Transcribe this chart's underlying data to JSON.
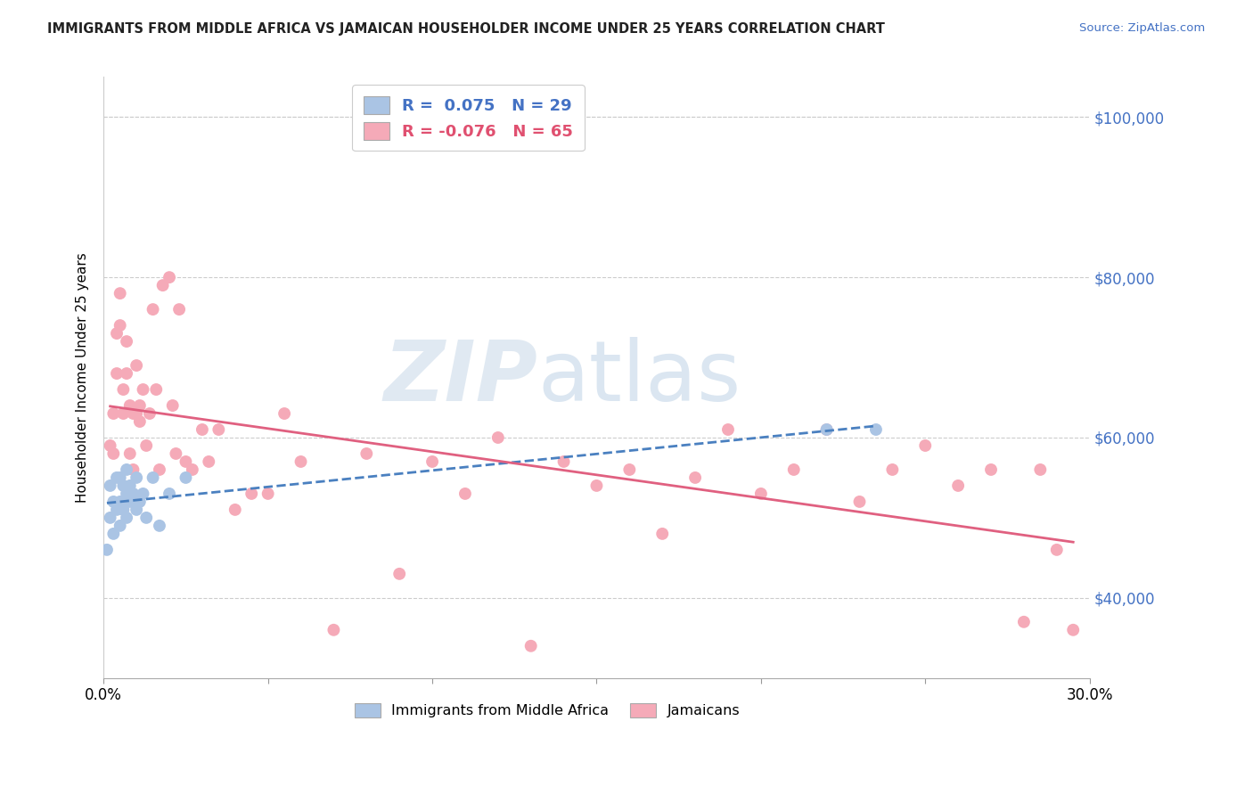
{
  "title": "IMMIGRANTS FROM MIDDLE AFRICA VS JAMAICAN HOUSEHOLDER INCOME UNDER 25 YEARS CORRELATION CHART",
  "source": "Source: ZipAtlas.com",
  "ylabel": "Householder Income Under 25 years",
  "xlim": [
    0.0,
    0.3
  ],
  "ylim": [
    30000,
    105000
  ],
  "xtick_positions": [
    0.0,
    0.05,
    0.1,
    0.15,
    0.2,
    0.25,
    0.3
  ],
  "xticklabels": [
    "0.0%",
    "",
    "",
    "",
    "",
    "",
    "30.0%"
  ],
  "ytick_positions": [
    40000,
    60000,
    80000,
    100000
  ],
  "ytick_labels": [
    "$40,000",
    "$60,000",
    "$80,000",
    "$100,000"
  ],
  "blue_color": "#aac4e4",
  "pink_color": "#f5aab8",
  "blue_line_color": "#4a80c0",
  "pink_line_color": "#e06080",
  "R_blue": 0.075,
  "N_blue": 29,
  "R_pink": -0.076,
  "N_pink": 65,
  "legend_label_blue": "Immigrants from Middle Africa",
  "legend_label_pink": "Jamaicans",
  "watermark_zip": "ZIP",
  "watermark_atlas": "atlas",
  "blue_scatter_x": [
    0.001,
    0.002,
    0.002,
    0.003,
    0.003,
    0.004,
    0.004,
    0.005,
    0.005,
    0.005,
    0.006,
    0.006,
    0.007,
    0.007,
    0.007,
    0.008,
    0.008,
    0.009,
    0.01,
    0.01,
    0.011,
    0.012,
    0.013,
    0.015,
    0.017,
    0.02,
    0.025,
    0.22,
    0.235
  ],
  "blue_scatter_y": [
    46000,
    50000,
    54000,
    48000,
    52000,
    51000,
    55000,
    49000,
    52000,
    55000,
    51000,
    54000,
    50000,
    53000,
    56000,
    52000,
    54000,
    53000,
    51000,
    55000,
    52000,
    53000,
    50000,
    55000,
    49000,
    53000,
    55000,
    61000,
    61000
  ],
  "pink_scatter_x": [
    0.002,
    0.003,
    0.003,
    0.004,
    0.004,
    0.005,
    0.005,
    0.006,
    0.006,
    0.007,
    0.007,
    0.008,
    0.008,
    0.009,
    0.009,
    0.01,
    0.01,
    0.011,
    0.011,
    0.012,
    0.013,
    0.014,
    0.015,
    0.016,
    0.017,
    0.018,
    0.02,
    0.021,
    0.022,
    0.023,
    0.025,
    0.027,
    0.03,
    0.032,
    0.035,
    0.04,
    0.045,
    0.05,
    0.055,
    0.06,
    0.07,
    0.08,
    0.09,
    0.1,
    0.11,
    0.12,
    0.13,
    0.14,
    0.15,
    0.16,
    0.17,
    0.18,
    0.19,
    0.2,
    0.21,
    0.22,
    0.23,
    0.24,
    0.25,
    0.26,
    0.27,
    0.28,
    0.285,
    0.29,
    0.295
  ],
  "pink_scatter_y": [
    59000,
    63000,
    58000,
    73000,
    68000,
    78000,
    74000,
    66000,
    63000,
    72000,
    68000,
    64000,
    58000,
    56000,
    63000,
    63000,
    69000,
    64000,
    62000,
    66000,
    59000,
    63000,
    76000,
    66000,
    56000,
    79000,
    80000,
    64000,
    58000,
    76000,
    57000,
    56000,
    61000,
    57000,
    61000,
    51000,
    53000,
    53000,
    63000,
    57000,
    36000,
    58000,
    43000,
    57000,
    53000,
    60000,
    34000,
    57000,
    54000,
    56000,
    48000,
    55000,
    61000,
    53000,
    56000,
    61000,
    52000,
    56000,
    59000,
    54000,
    56000,
    37000,
    56000,
    46000,
    36000
  ]
}
